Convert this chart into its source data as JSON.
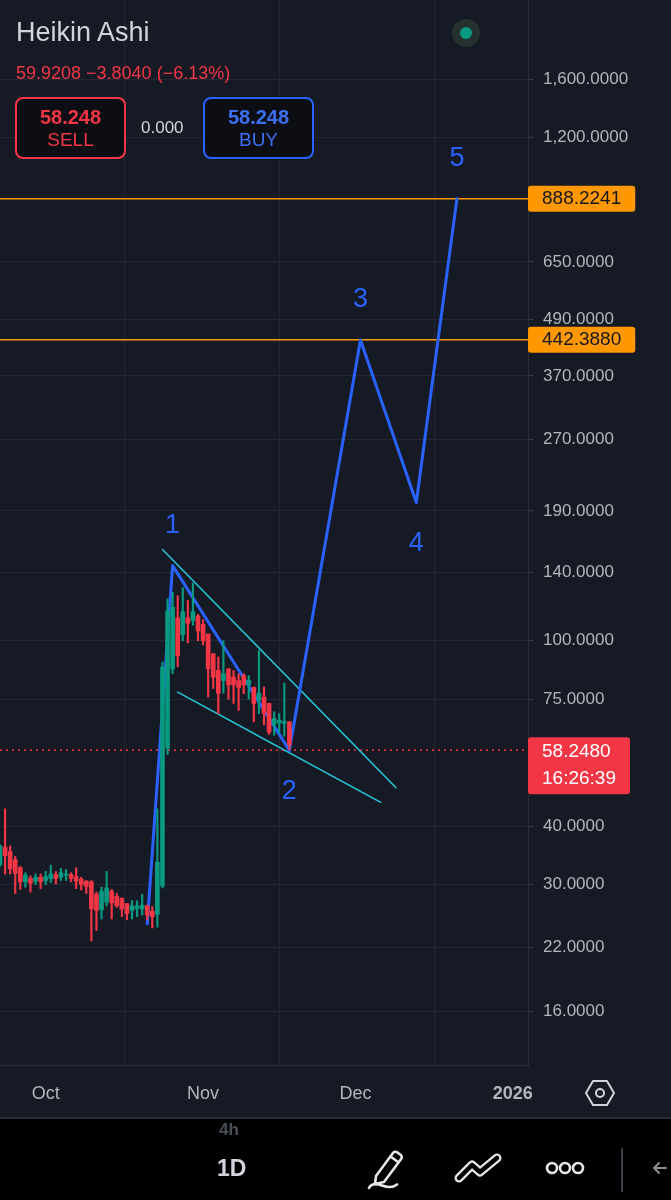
{
  "chart_data": {
    "type": "candlestick",
    "title": "Heikin Ashi",
    "subtitle": "59.9208 −3.8040 (−6.13%)",
    "x": [
      "2025-09-22",
      "2025-09-23",
      "2025-09-24",
      "2025-09-25",
      "2025-09-26",
      "2025-09-27",
      "2025-09-28",
      "2025-09-29",
      "2025-09-30",
      "2025-10-01",
      "2025-10-02",
      "2025-10-03",
      "2025-10-04",
      "2025-10-05",
      "2025-10-06",
      "2025-10-07",
      "2025-10-08",
      "2025-10-09",
      "2025-10-10",
      "2025-10-11",
      "2025-10-12",
      "2025-10-13",
      "2025-10-14",
      "2025-10-15",
      "2025-10-16",
      "2025-10-17",
      "2025-10-18",
      "2025-10-19",
      "2025-10-20",
      "2025-10-21",
      "2025-10-22",
      "2025-10-23",
      "2025-10-24",
      "2025-10-25",
      "2025-10-26",
      "2025-10-27",
      "2025-10-28",
      "2025-10-29",
      "2025-10-30",
      "2025-10-31",
      "2025-11-01",
      "2025-11-02",
      "2025-11-03",
      "2025-11-04",
      "2025-11-05",
      "2025-11-06",
      "2025-11-07",
      "2025-11-08",
      "2025-11-09",
      "2025-11-10",
      "2025-11-11",
      "2025-11-12",
      "2025-11-13",
      "2025-11-14",
      "2025-11-15",
      "2025-11-16",
      "2025-11-17",
      "2025-11-18"
    ],
    "ohlc": [
      [
        33.1,
        36.5,
        32.8,
        36.3
      ],
      [
        36.1,
        43.6,
        31.6,
        34.6
      ],
      [
        35.3,
        36.3,
        31.6,
        32.4
      ],
      [
        33.9,
        34.5,
        28.7,
        31.7
      ],
      [
        32.6,
        32.8,
        29.3,
        30.4
      ],
      [
        30.4,
        31.8,
        29.6,
        31.4
      ],
      [
        30.9,
        31.3,
        28.9,
        30.2
      ],
      [
        30.5,
        31.6,
        30.0,
        31.1
      ],
      [
        31.1,
        31.6,
        29.4,
        30.4
      ],
      [
        30.6,
        32.0,
        30.0,
        31.2
      ],
      [
        30.9,
        33.0,
        30.3,
        31.6
      ],
      [
        31.5,
        32.0,
        30.1,
        30.9
      ],
      [
        31.1,
        32.5,
        30.6,
        31.8
      ],
      [
        31.4,
        32.3,
        30.6,
        31.6
      ],
      [
        31.5,
        31.8,
        30.4,
        30.9
      ],
      [
        31.2,
        32.6,
        29.4,
        30.5
      ],
      [
        30.8,
        31.1,
        29.2,
        30.0
      ],
      [
        30.5,
        30.6,
        28.7,
        29.7
      ],
      [
        30.4,
        30.6,
        22.7,
        26.6
      ],
      [
        28.6,
        28.9,
        23.9,
        26.4
      ],
      [
        26.5,
        29.6,
        25.3,
        29.0
      ],
      [
        27.5,
        32.0,
        27.0,
        29.5
      ],
      [
        29.0,
        29.3,
        25.3,
        27.4
      ],
      [
        28.3,
        28.7,
        26.8,
        27.0
      ],
      [
        28.0,
        28.1,
        25.6,
        26.6
      ],
      [
        27.3,
        27.3,
        25.2,
        26.0
      ],
      [
        26.4,
        27.7,
        25.3,
        27.0
      ],
      [
        26.6,
        27.7,
        25.6,
        27.0
      ],
      [
        26.6,
        28.6,
        25.8,
        27.1
      ],
      [
        27.0,
        27.1,
        25.2,
        25.8
      ],
      [
        26.3,
        26.9,
        24.2,
        25.6
      ],
      [
        25.9,
        43.6,
        24.3,
        33.5
      ],
      [
        29.8,
        90,
        29.5,
        87.7
      ],
      [
        58.8,
        123,
        57,
        116
      ],
      [
        87,
        127,
        85,
        118
      ],
      [
        112,
        125,
        88,
        93
      ],
      [
        103,
        130,
        100,
        115.5
      ],
      [
        112,
        122,
        99,
        109
      ],
      [
        110.5,
        133,
        108,
        115.5
      ],
      [
        113,
        114,
        100,
        105
      ],
      [
        108.5,
        111,
        98,
        100
      ],
      [
        103.4,
        103.4,
        75.7,
        87.1
      ],
      [
        93.8,
        94,
        79,
        83.5
      ],
      [
        86.4,
        92.3,
        69.8,
        77.2
      ],
      [
        82.2,
        100,
        77.2,
        85
      ],
      [
        87,
        87.2,
        75,
        80.4
      ],
      [
        83.6,
        86.4,
        73.4,
        80.4
      ],
      [
        82.2,
        85,
        70.9,
        79.4
      ],
      [
        84.2,
        85,
        77,
        80.4
      ],
      [
        80.4,
        84.2,
        75,
        82.2
      ],
      [
        79.4,
        79.6,
        67,
        73.4
      ],
      [
        74.5,
        95.3,
        69.8,
        77.2
      ],
      [
        75.7,
        79.6,
        66,
        69.8
      ],
      [
        73.4,
        73.5,
        63,
        63.7
      ],
      [
        66.2,
        70.4,
        62.7,
        68.1
      ],
      [
        66.6,
        69.8,
        63.5,
        67.5
      ],
      [
        66.6,
        81.2,
        62.4,
        67.1
      ],
      [
        67.0,
        67.1,
        58.3,
        59.9
      ]
    ],
    "colors": [
      "#089981",
      "#f23645",
      "#f23645",
      "#f23645",
      "#f23645",
      "#089981",
      "#f23645",
      "#089981",
      "#f23645",
      "#089981",
      "#089981",
      "#f23645",
      "#089981",
      "#089981",
      "#f23645",
      "#f23645",
      "#f23645",
      "#f23645",
      "#f23645",
      "#f23645",
      "#089981",
      "#089981",
      "#f23645",
      "#f23645",
      "#f23645",
      "#f23645",
      "#089981",
      "#089981",
      "#089981",
      "#f23645",
      "#f23645",
      "#089981",
      "#089981",
      "#089981",
      "#089981",
      "#f23645",
      "#089981",
      "#f23645",
      "#089981",
      "#f23645",
      "#f23645",
      "#f23645",
      "#f23645",
      "#f23645",
      "#089981",
      "#f23645",
      "#f23645",
      "#f23645",
      "#f23645",
      "#089981",
      "#f23645",
      "#089981",
      "#f23645",
      "#f23645",
      "#089981",
      "#089981",
      "#089981",
      "#f23645"
    ],
    "series": [
      {
        "type": "line",
        "color": "#2962ff",
        "x": [
          "2025-10-21",
          "2025-10-26",
          "2025-11-18",
          "2025-12-02",
          "2025-12-13",
          "2025-12-21"
        ],
        "values": [
          24.7,
          145,
          58.2,
          442,
          198,
          888
        ]
      },
      {
        "type": "line",
        "color": "#26c6da",
        "x": [
          "2025-10-24",
          "2025-12-09"
        ],
        "values": [
          157,
          48.4
        ]
      },
      {
        "type": "line",
        "color": "#26c6da",
        "x": [
          "2025-10-27",
          "2025-12-06"
        ],
        "values": [
          77.6,
          45
        ]
      }
    ],
    "xlim": [
      "2025-09-22",
      "2026-01-04"
    ],
    "xticks": [
      {
        "value": "2025-10-01",
        "label": "Oct"
      },
      {
        "value": "2025-11-01",
        "label": "Nov"
      },
      {
        "value": "2025-12-01",
        "label": "Dec"
      },
      {
        "value": "2026-01-01",
        "label": "2026"
      }
    ],
    "ylim": [
      12.3,
      2370
    ],
    "yticks": [
      {
        "value": 16,
        "label": "16.0000"
      },
      {
        "value": 22,
        "label": "22.0000"
      },
      {
        "value": 30,
        "label": "30.0000"
      },
      {
        "value": 40,
        "label": "40.0000"
      },
      {
        "value": 75,
        "label": "75.0000"
      },
      {
        "value": 100,
        "label": "100.0000"
      },
      {
        "value": 140,
        "label": "140.0000"
      },
      {
        "value": 190,
        "label": "190.0000"
      },
      {
        "value": 270,
        "label": "270.0000"
      },
      {
        "value": 370,
        "label": "370.0000"
      },
      {
        "value": 490,
        "label": "490.0000"
      },
      {
        "value": 650,
        "label": "650.0000"
      },
      {
        "value": 1200,
        "label": "1,200.0000"
      },
      {
        "value": 1600,
        "label": "1,600.0000"
      }
    ],
    "log": true,
    "grid": true,
    "ref_lines": [
      {
        "axis": "y",
        "value": 888.2241,
        "label": "888.2241",
        "color": "#ff9800"
      },
      {
        "axis": "y",
        "value": 442.388,
        "label": "442.3880",
        "color": "#ff9800"
      },
      {
        "axis": "y",
        "value": 58.248,
        "label": "58.2480",
        "color": "#f23645",
        "line_style": "dotted"
      }
    ],
    "annotations": [
      "58.248",
      "SELL",
      "0.000",
      "58.248",
      "BUY",
      "16:26:39",
      "4h",
      "1D",
      {
        "text": "1",
        "x": "2025-10-26",
        "y": 145
      },
      {
        "text": "2",
        "x": "2025-11-18",
        "y": 58.2
      },
      {
        "text": "3",
        "x": "2025-12-02",
        "y": 442
      },
      {
        "text": "4",
        "x": "2025-12-13",
        "y": 198
      },
      {
        "text": "5",
        "x": "2025-12-21",
        "y": 888
      }
    ]
  }
}
